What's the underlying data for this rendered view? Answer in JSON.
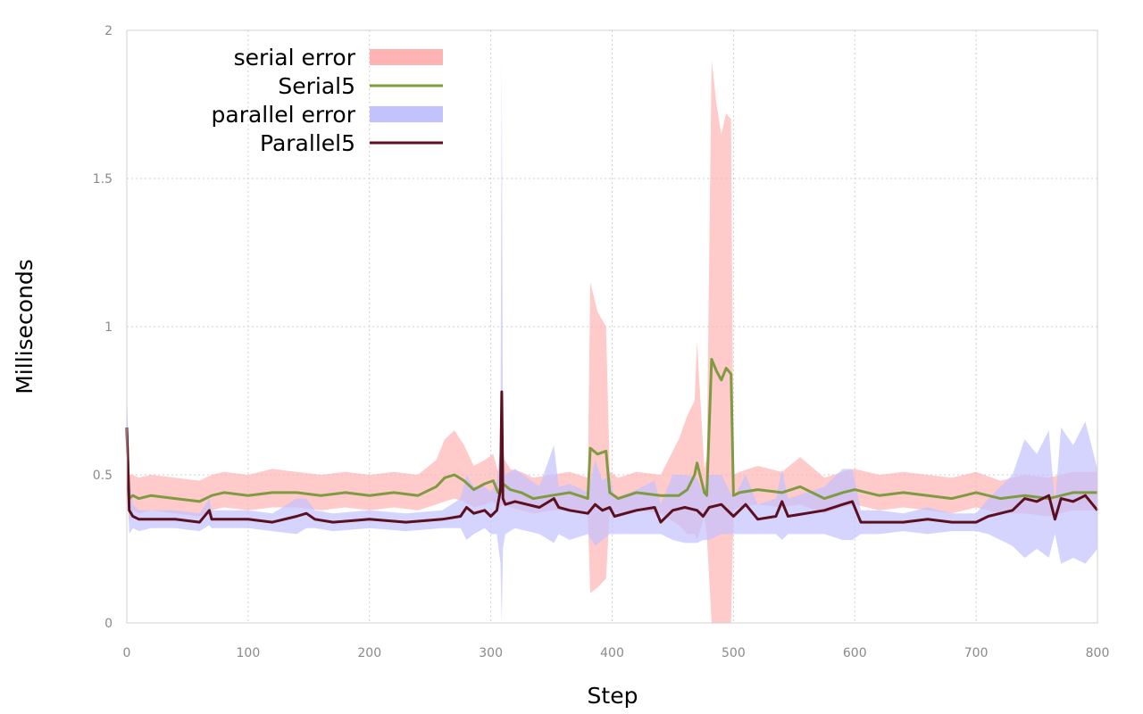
{
  "chart_data": {
    "type": "line",
    "title": "",
    "xlabel": "Step",
    "ylabel": "Milliseconds",
    "xlim": [
      0,
      800
    ],
    "ylim": [
      0,
      2
    ],
    "xticks": [
      0,
      100,
      200,
      300,
      400,
      500,
      600,
      700,
      800
    ],
    "xtick_labels": [
      "0",
      "100",
      "200",
      "300",
      "400",
      "500",
      "600",
      "700",
      "800"
    ],
    "yticks": [
      0,
      0.5,
      1,
      1.5,
      2
    ],
    "ytick_labels": [
      "0",
      "0.5",
      "1",
      "1.5",
      "2"
    ],
    "grid": true,
    "legend_position": "top-left",
    "series": [
      {
        "name": "Serial5",
        "error_name": "serial error",
        "line_color": "#7f9a41",
        "band_color": "#ffb3b3",
        "x": [
          0,
          2,
          5,
          10,
          20,
          40,
          60,
          70,
          80,
          100,
          120,
          140,
          160,
          180,
          200,
          220,
          240,
          255,
          262,
          270,
          278,
          286,
          295,
          302,
          306,
          310,
          316,
          325,
          335,
          350,
          365,
          380,
          382,
          388,
          395,
          398,
          405,
          420,
          440,
          455,
          462,
          468,
          470,
          476,
          478,
          482,
          486,
          490,
          494,
          498,
          500,
          505,
          520,
          540,
          555,
          575,
          590,
          600,
          620,
          640,
          660,
          680,
          700,
          720,
          740,
          760,
          780,
          800
        ],
        "values": [
          0.65,
          0.42,
          0.43,
          0.42,
          0.43,
          0.42,
          0.41,
          0.43,
          0.44,
          0.43,
          0.44,
          0.44,
          0.43,
          0.44,
          0.43,
          0.44,
          0.43,
          0.46,
          0.49,
          0.5,
          0.48,
          0.45,
          0.47,
          0.48,
          0.44,
          0.47,
          0.45,
          0.44,
          0.42,
          0.43,
          0.44,
          0.42,
          0.59,
          0.57,
          0.58,
          0.44,
          0.42,
          0.44,
          0.43,
          0.43,
          0.45,
          0.5,
          0.54,
          0.44,
          0.43,
          0.89,
          0.85,
          0.82,
          0.86,
          0.84,
          0.43,
          0.44,
          0.45,
          0.44,
          0.46,
          0.42,
          0.44,
          0.45,
          0.43,
          0.44,
          0.43,
          0.42,
          0.44,
          0.42,
          0.43,
          0.42,
          0.44,
          0.44
        ],
        "lower": [
          0.55,
          0.34,
          0.38,
          0.37,
          0.38,
          0.37,
          0.36,
          0.38,
          0.39,
          0.38,
          0.39,
          0.39,
          0.38,
          0.39,
          0.38,
          0.39,
          0.38,
          0.4,
          0.41,
          0.42,
          0.41,
          0.39,
          0.4,
          0.41,
          0.38,
          0.4,
          0.39,
          0.38,
          0.37,
          0.38,
          0.38,
          0.37,
          0.1,
          0.12,
          0.15,
          0.38,
          0.37,
          0.38,
          0.37,
          0.33,
          0.3,
          0.3,
          0.28,
          0.36,
          0.3,
          0.0,
          0.0,
          0.0,
          0.0,
          0.0,
          0.38,
          0.39,
          0.4,
          0.39,
          0.4,
          0.37,
          0.39,
          0.4,
          0.38,
          0.39,
          0.38,
          0.37,
          0.39,
          0.37,
          0.37,
          0.36,
          0.38,
          0.38
        ],
        "upper": [
          0.75,
          0.5,
          0.5,
          0.49,
          0.5,
          0.49,
          0.48,
          0.5,
          0.51,
          0.5,
          0.52,
          0.51,
          0.5,
          0.51,
          0.5,
          0.51,
          0.5,
          0.55,
          0.62,
          0.65,
          0.6,
          0.53,
          0.55,
          0.57,
          0.51,
          0.56,
          0.52,
          0.51,
          0.49,
          0.5,
          0.51,
          0.49,
          1.15,
          1.05,
          1.0,
          0.51,
          0.49,
          0.51,
          0.5,
          0.62,
          0.7,
          0.75,
          0.95,
          0.52,
          0.56,
          1.9,
          1.75,
          1.65,
          1.72,
          1.7,
          0.5,
          0.51,
          0.53,
          0.51,
          0.56,
          0.49,
          0.51,
          0.52,
          0.5,
          0.51,
          0.5,
          0.49,
          0.51,
          0.48,
          0.5,
          0.49,
          0.51,
          0.51
        ]
      },
      {
        "name": "Parallel5",
        "error_name": "parallel error",
        "line_color": "#5b0f1f",
        "band_color": "#c2c2ff",
        "x": [
          0,
          2,
          5,
          10,
          20,
          40,
          60,
          68,
          70,
          80,
          100,
          120,
          140,
          148,
          155,
          170,
          200,
          230,
          260,
          275,
          280,
          286,
          295,
          300,
          305,
          308,
          309,
          310,
          312,
          320,
          340,
          352,
          356,
          365,
          380,
          386,
          392,
          398,
          402,
          420,
          435,
          440,
          450,
          460,
          470,
          475,
          480,
          490,
          500,
          510,
          520,
          535,
          540,
          545,
          560,
          575,
          590,
          598,
          605,
          620,
          640,
          660,
          680,
          700,
          710,
          720,
          730,
          740,
          750,
          760,
          765,
          770,
          780,
          790,
          800
        ],
        "values": [
          0.66,
          0.38,
          0.36,
          0.35,
          0.35,
          0.35,
          0.34,
          0.38,
          0.35,
          0.35,
          0.35,
          0.34,
          0.36,
          0.37,
          0.35,
          0.34,
          0.35,
          0.34,
          0.35,
          0.36,
          0.39,
          0.37,
          0.38,
          0.36,
          0.38,
          0.45,
          0.78,
          0.42,
          0.4,
          0.41,
          0.39,
          0.42,
          0.39,
          0.38,
          0.37,
          0.4,
          0.38,
          0.39,
          0.36,
          0.38,
          0.39,
          0.34,
          0.38,
          0.39,
          0.38,
          0.36,
          0.39,
          0.4,
          0.36,
          0.4,
          0.35,
          0.36,
          0.41,
          0.36,
          0.37,
          0.38,
          0.4,
          0.41,
          0.34,
          0.34,
          0.34,
          0.35,
          0.34,
          0.34,
          0.36,
          0.37,
          0.38,
          0.42,
          0.41,
          0.43,
          0.35,
          0.42,
          0.41,
          0.43,
          0.38
        ],
        "lower": [
          0.55,
          0.3,
          0.32,
          0.31,
          0.32,
          0.32,
          0.31,
          0.33,
          0.32,
          0.32,
          0.32,
          0.31,
          0.3,
          0.32,
          0.32,
          0.31,
          0.32,
          0.31,
          0.32,
          0.32,
          0.28,
          0.3,
          0.32,
          0.3,
          0.3,
          0.2,
          0.0,
          0.25,
          0.3,
          0.32,
          0.3,
          0.27,
          0.3,
          0.28,
          0.3,
          0.26,
          0.28,
          0.3,
          0.3,
          0.3,
          0.3,
          0.3,
          0.28,
          0.27,
          0.27,
          0.28,
          0.28,
          0.3,
          0.3,
          0.3,
          0.3,
          0.3,
          0.28,
          0.3,
          0.3,
          0.3,
          0.28,
          0.28,
          0.3,
          0.3,
          0.31,
          0.3,
          0.31,
          0.31,
          0.3,
          0.28,
          0.26,
          0.22,
          0.25,
          0.22,
          0.3,
          0.2,
          0.22,
          0.2,
          0.25
        ],
        "upper": [
          0.8,
          0.5,
          0.4,
          0.38,
          0.38,
          0.38,
          0.37,
          0.42,
          0.38,
          0.38,
          0.38,
          0.37,
          0.42,
          0.42,
          0.38,
          0.37,
          0.38,
          0.37,
          0.38,
          0.42,
          0.5,
          0.46,
          0.46,
          0.44,
          0.48,
          0.6,
          1.9,
          0.6,
          0.5,
          0.52,
          0.46,
          0.6,
          0.46,
          0.47,
          0.44,
          0.55,
          0.48,
          0.5,
          0.42,
          0.45,
          0.48,
          0.4,
          0.5,
          0.5,
          0.49,
          0.44,
          0.5,
          0.5,
          0.42,
          0.5,
          0.4,
          0.42,
          0.52,
          0.42,
          0.44,
          0.46,
          0.52,
          0.52,
          0.38,
          0.38,
          0.37,
          0.39,
          0.37,
          0.37,
          0.42,
          0.46,
          0.5,
          0.62,
          0.57,
          0.65,
          0.4,
          0.66,
          0.6,
          0.68,
          0.52
        ]
      }
    ]
  }
}
